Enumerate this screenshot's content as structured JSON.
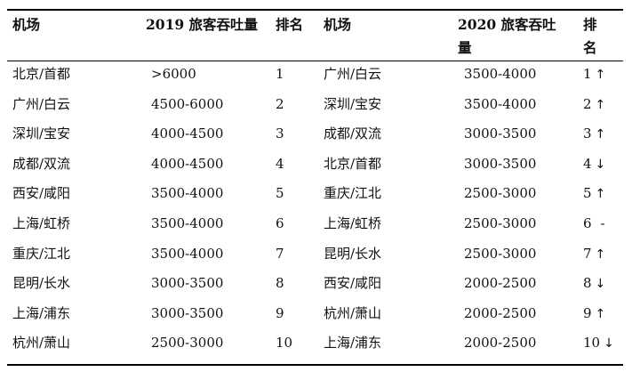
{
  "headers": {
    "airport_2019": "机场",
    "passengers_2019": "2019 旅客吞吐量",
    "rank_2019": "排名",
    "airport_2020": "机场",
    "passengers_2020_line1": "2020  旅客吞吐",
    "passengers_2020_line2": "量",
    "rank_2020_line1": "排",
    "rank_2020_line2": "名"
  },
  "rows": [
    {
      "airport_2019": "北京/首都",
      "passengers_2019": ">6000",
      "rank_2019": "1",
      "airport_2020": "广州/白云",
      "passengers_2020": "3500-4000",
      "rank_2020": "1",
      "trend": "↑"
    },
    {
      "airport_2019": "广州/白云",
      "passengers_2019": "4500-6000",
      "rank_2019": "2",
      "airport_2020": "深圳/宝安",
      "passengers_2020": "3500-4000",
      "rank_2020": "2",
      "trend": "↑"
    },
    {
      "airport_2019": "深圳/宝安",
      "passengers_2019": "4000-4500",
      "rank_2019": "3",
      "airport_2020": "成都/双流",
      "passengers_2020": "3000-3500",
      "rank_2020": "3",
      "trend": "↑"
    },
    {
      "airport_2019": "成都/双流",
      "passengers_2019": "4000-4500",
      "rank_2019": "4",
      "airport_2020": "北京/首都",
      "passengers_2020": "3000-3500",
      "rank_2020": "4",
      "trend": "↓"
    },
    {
      "airport_2019": "西安/咸阳",
      "passengers_2019": "3500-4000",
      "rank_2019": "5",
      "airport_2020": "重庆/江北",
      "passengers_2020": "2500-3000",
      "rank_2020": "5",
      "trend": "↑"
    },
    {
      "airport_2019": "上海/虹桥",
      "passengers_2019": "3500-4000",
      "rank_2019": "6",
      "airport_2020": "上海/虹桥",
      "passengers_2020": "2500-3000",
      "rank_2020": "6",
      "trend": "-"
    },
    {
      "airport_2019": "重庆/江北",
      "passengers_2019": "3500-4000",
      "rank_2019": "7",
      "airport_2020": "昆明/长水",
      "passengers_2020": "2500-3000",
      "rank_2020": "7",
      "trend": "↑"
    },
    {
      "airport_2019": "昆明/长水",
      "passengers_2019": "3000-3500",
      "rank_2019": "8",
      "airport_2020": "西安/咸阳",
      "passengers_2020": "2000-2500",
      "rank_2020": "8",
      "trend": "↓"
    },
    {
      "airport_2019": "上海/浦东",
      "passengers_2019": "3000-3500",
      "rank_2019": "9",
      "airport_2020": "杭州/萧山",
      "passengers_2020": "2000-2500",
      "rank_2020": "9",
      "trend": "↑"
    },
    {
      "airport_2019": "杭州/萧山",
      "passengers_2019": "2500-3000",
      "rank_2019": "10",
      "airport_2020": "上海/浦东",
      "passengers_2020": "2000-2500",
      "rank_2020": "10",
      "trend": "↓"
    }
  ]
}
